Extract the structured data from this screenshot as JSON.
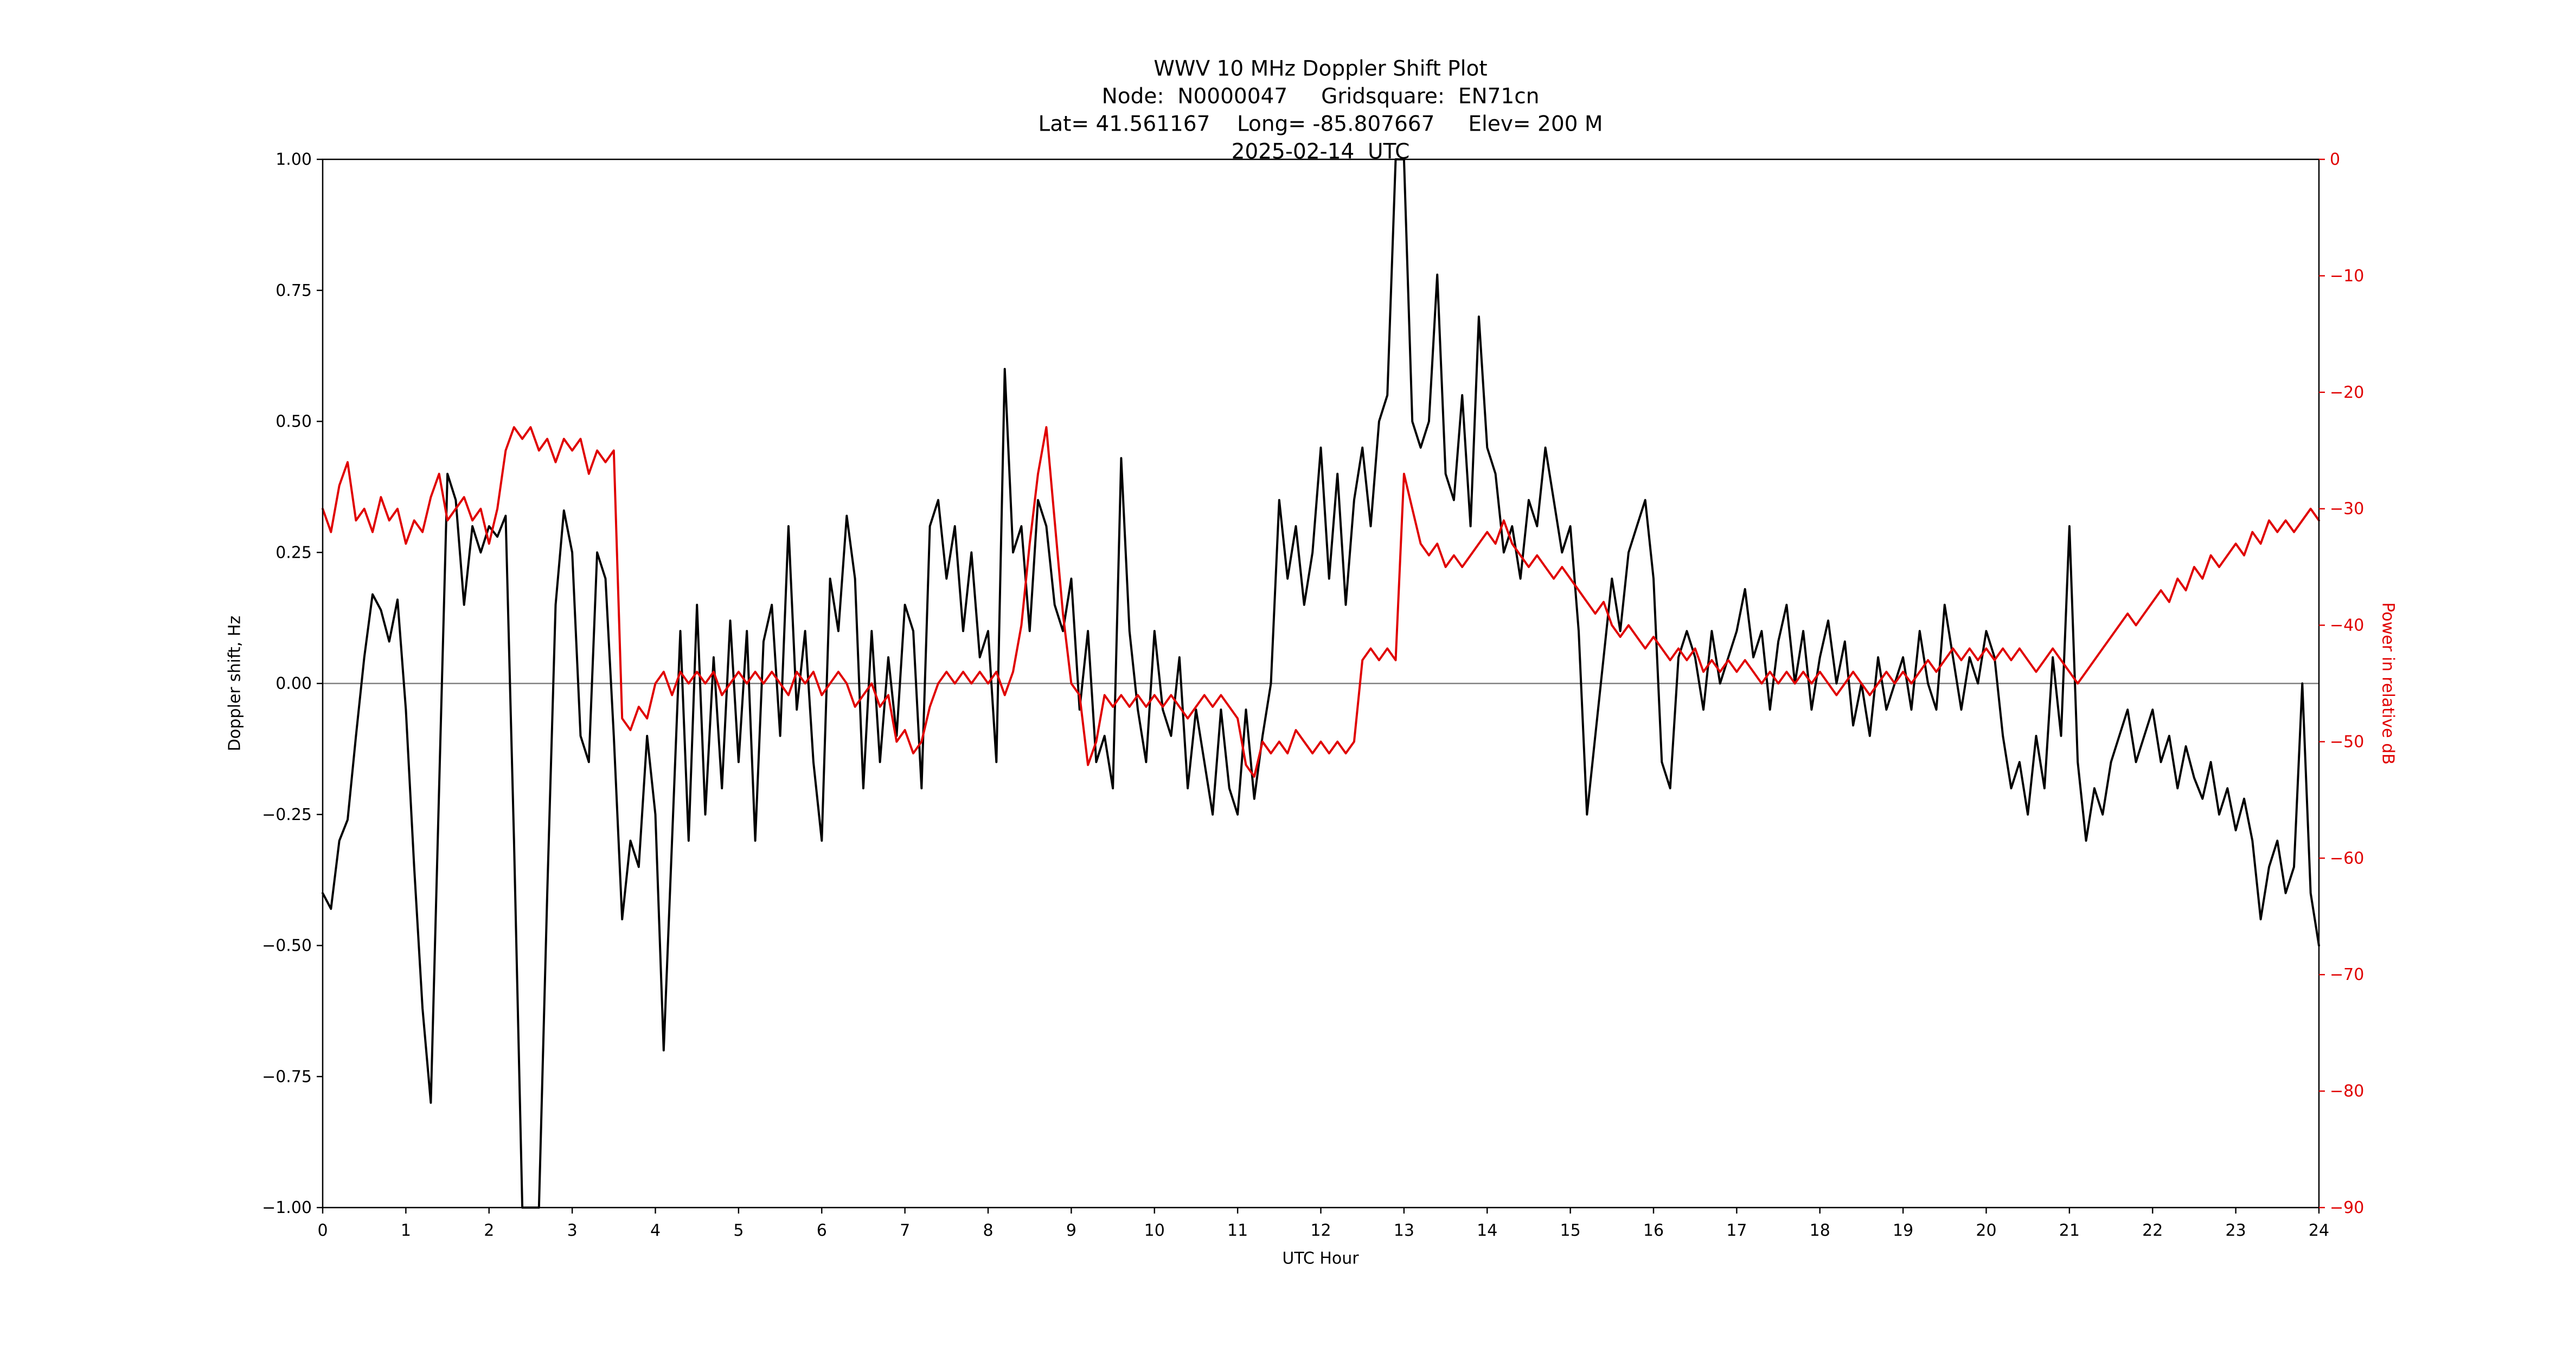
{
  "colors": {
    "doppler": "#000000",
    "power": "#e00000",
    "zero_line": "#808080",
    "frame": "#000000"
  },
  "chart_data": {
    "type": "line",
    "title_lines": [
      "WWV 10 MHz Doppler Shift Plot",
      "Node:  N0000047     Gridsquare:  EN71cn",
      "Lat= 41.561167    Long= -85.807667     Elev= 200 M",
      "2025-02-14  UTC"
    ],
    "xlabel": "UTC Hour",
    "ylabel_left": "Doppler shift, Hz",
    "ylabel_right": "Power in relative dB",
    "grid": false,
    "legend": "none",
    "x_range": [
      0,
      24
    ],
    "y_left_range": [
      -1.0,
      1.0
    ],
    "y_right_range": [
      -90,
      0
    ],
    "zero_reference_line": 0.0,
    "x_tick_values": [
      0,
      1,
      2,
      3,
      4,
      5,
      6,
      7,
      8,
      9,
      10,
      11,
      12,
      13,
      14,
      15,
      16,
      17,
      18,
      19,
      20,
      21,
      22,
      23,
      24
    ],
    "x_tick_labels": [
      "0",
      "1",
      "2",
      "3",
      "4",
      "5",
      "6",
      "7",
      "8",
      "9",
      "10",
      "11",
      "12",
      "13",
      "14",
      "15",
      "16",
      "17",
      "18",
      "19",
      "20",
      "21",
      "22",
      "23",
      "24"
    ],
    "y_left_tick_values": [
      1.0,
      0.75,
      0.5,
      0.25,
      0.0,
      -0.25,
      -0.5,
      -0.75,
      -1.0
    ],
    "y_left_tick_labels": [
      "1.00",
      "0.75",
      "0.50",
      "0.25",
      "0.00",
      "−0.25",
      "−0.50",
      "−0.75",
      "−1.00"
    ],
    "y_right_tick_values": [
      0,
      -10,
      -20,
      -30,
      -40,
      -50,
      -60,
      -70,
      -80,
      -90
    ],
    "y_right_tick_labels": [
      "0",
      "−10",
      "−20",
      "−30",
      "−40",
      "−50",
      "−60",
      "−70",
      "−80",
      "−90"
    ],
    "x_start": 0,
    "x_step": 0.1,
    "series": [
      {
        "name": "Doppler shift (Hz)",
        "axis": "left",
        "color": "#000000",
        "values": [
          -0.4,
          -0.43,
          -0.3,
          -0.26,
          -0.1,
          0.05,
          0.17,
          0.14,
          0.08,
          0.16,
          -0.05,
          -0.35,
          -0.62,
          -0.8,
          -0.2,
          0.4,
          0.35,
          0.15,
          0.3,
          0.25,
          0.3,
          0.28,
          0.32,
          -0.3,
          -1.0,
          -1.0,
          -1.0,
          -0.4,
          0.15,
          0.33,
          0.25,
          -0.1,
          -0.15,
          0.25,
          0.2,
          -0.1,
          -0.45,
          -0.3,
          -0.35,
          -0.1,
          -0.25,
          -0.7,
          -0.3,
          0.1,
          -0.3,
          0.15,
          -0.25,
          0.05,
          -0.2,
          0.12,
          -0.15,
          0.1,
          -0.3,
          0.08,
          0.15,
          -0.1,
          0.3,
          -0.05,
          0.1,
          -0.15,
          -0.3,
          0.2,
          0.1,
          0.32,
          0.2,
          -0.2,
          0.1,
          -0.15,
          0.05,
          -0.1,
          0.15,
          0.1,
          -0.2,
          0.3,
          0.35,
          0.2,
          0.3,
          0.1,
          0.25,
          0.05,
          0.1,
          -0.15,
          0.6,
          0.25,
          0.3,
          0.1,
          0.35,
          0.3,
          0.15,
          0.1,
          0.2,
          -0.05,
          0.1,
          -0.15,
          -0.1,
          -0.2,
          0.43,
          0.1,
          -0.05,
          -0.15,
          0.1,
          -0.05,
          -0.1,
          0.05,
          -0.2,
          -0.05,
          -0.15,
          -0.25,
          -0.05,
          -0.2,
          -0.25,
          -0.05,
          -0.22,
          -0.1,
          0.0,
          0.35,
          0.2,
          0.3,
          0.15,
          0.25,
          0.45,
          0.2,
          0.4,
          0.15,
          0.35,
          0.45,
          0.3,
          0.5,
          0.55,
          1.0,
          1.0,
          0.5,
          0.45,
          0.5,
          0.78,
          0.4,
          0.35,
          0.55,
          0.3,
          0.7,
          0.45,
          0.4,
          0.25,
          0.3,
          0.2,
          0.35,
          0.3,
          0.45,
          0.35,
          0.25,
          0.3,
          0.1,
          -0.25,
          -0.1,
          0.05,
          0.2,
          0.1,
          0.25,
          0.3,
          0.35,
          0.2,
          -0.15,
          -0.2,
          0.05,
          0.1,
          0.05,
          -0.05,
          0.1,
          0.0,
          0.05,
          0.1,
          0.18,
          0.05,
          0.1,
          -0.05,
          0.08,
          0.15,
          0.0,
          0.1,
          -0.05,
          0.05,
          0.12,
          0.0,
          0.08,
          -0.08,
          0.0,
          -0.1,
          0.05,
          -0.05,
          0.0,
          0.05,
          -0.05,
          0.1,
          0.0,
          -0.05,
          0.15,
          0.05,
          -0.05,
          0.05,
          0.0,
          0.1,
          0.05,
          -0.1,
          -0.2,
          -0.15,
          -0.25,
          -0.1,
          -0.2,
          0.05,
          -0.1,
          0.3,
          -0.15,
          -0.3,
          -0.2,
          -0.25,
          -0.15,
          -0.1,
          -0.05,
          -0.15,
          -0.1,
          -0.05,
          -0.15,
          -0.1,
          -0.2,
          -0.12,
          -0.18,
          -0.22,
          -0.15,
          -0.25,
          -0.2,
          -0.28,
          -0.22,
          -0.3,
          -0.45,
          -0.35,
          -0.3,
          -0.4,
          -0.35,
          0.0,
          -0.4,
          -0.5
        ]
      },
      {
        "name": "Power in relative dB",
        "axis": "right",
        "color": "#e00000",
        "values": [
          -30,
          -32,
          -28,
          -26,
          -31,
          -30,
          -32,
          -29,
          -31,
          -30,
          -33,
          -31,
          -32,
          -29,
          -27,
          -31,
          -30,
          -29,
          -31,
          -30,
          -33,
          -30,
          -25,
          -23,
          -24,
          -23,
          -25,
          -24,
          -26,
          -24,
          -25,
          -24,
          -27,
          -25,
          -26,
          -25,
          -48,
          -49,
          -47,
          -48,
          -45,
          -44,
          -46,
          -44,
          -45,
          -44,
          -45,
          -44,
          -46,
          -45,
          -44,
          -45,
          -44,
          -45,
          -44,
          -45,
          -46,
          -44,
          -45,
          -44,
          -46,
          -45,
          -44,
          -45,
          -47,
          -46,
          -45,
          -47,
          -46,
          -50,
          -49,
          -51,
          -50,
          -47,
          -45,
          -44,
          -45,
          -44,
          -45,
          -44,
          -45,
          -44,
          -46,
          -44,
          -40,
          -33,
          -27,
          -23,
          -31,
          -39,
          -45,
          -46,
          -52,
          -50,
          -46,
          -47,
          -46,
          -47,
          -46,
          -47,
          -46,
          -47,
          -46,
          -47,
          -48,
          -47,
          -46,
          -47,
          -46,
          -47,
          -48,
          -52,
          -53,
          -50,
          -51,
          -50,
          -51,
          -49,
          -50,
          -51,
          -50,
          -51,
          -50,
          -51,
          -50,
          -43,
          -42,
          -43,
          -42,
          -43,
          -27,
          -30,
          -33,
          -34,
          -33,
          -35,
          -34,
          -35,
          -34,
          -33,
          -32,
          -33,
          -31,
          -33,
          -34,
          -35,
          -34,
          -35,
          -36,
          -35,
          -36,
          -37,
          -38,
          -39,
          -38,
          -40,
          -41,
          -40,
          -41,
          -42,
          -41,
          -42,
          -43,
          -42,
          -43,
          -42,
          -44,
          -43,
          -44,
          -43,
          -44,
          -43,
          -44,
          -45,
          -44,
          -45,
          -44,
          -45,
          -44,
          -45,
          -44,
          -45,
          -46,
          -45,
          -44,
          -45,
          -46,
          -45,
          -44,
          -45,
          -44,
          -45,
          -44,
          -43,
          -44,
          -43,
          -42,
          -43,
          -42,
          -43,
          -42,
          -43,
          -42,
          -43,
          -42,
          -43,
          -44,
          -43,
          -42,
          -43,
          -44,
          -45,
          -44,
          -43,
          -42,
          -41,
          -40,
          -39,
          -40,
          -39,
          -38,
          -37,
          -38,
          -36,
          -37,
          -35,
          -36,
          -34,
          -35,
          -34,
          -33,
          -34,
          -32,
          -33,
          -31,
          -32,
          -31,
          -32,
          -31,
          -30,
          -31
        ]
      }
    ]
  }
}
